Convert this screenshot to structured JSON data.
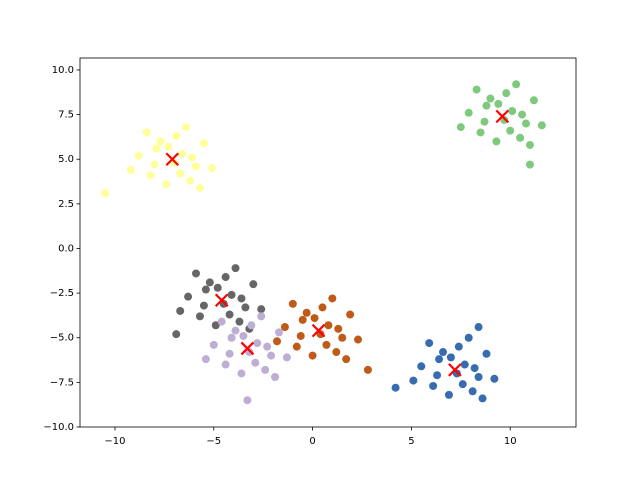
{
  "chart_data": {
    "type": "scatter",
    "xlim": [
      -11.77,
      13.33
    ],
    "ylim": [
      -10,
      10.67
    ],
    "xticks": [
      {
        "value": -10,
        "label": "−10"
      },
      {
        "value": -5,
        "label": "−5"
      },
      0,
      5,
      10
    ],
    "yticks": [
      {
        "value": -10,
        "label": "−10.0"
      },
      {
        "value": -7.5,
        "label": "−7.5"
      },
      {
        "value": -5,
        "label": "−5.0"
      },
      {
        "value": -2.5,
        "label": "−2.5"
      },
      {
        "value": 0,
        "label": "0.0"
      },
      {
        "value": 2.5,
        "label": "2.5"
      },
      {
        "value": 5,
        "label": "5.0"
      },
      {
        "value": 7.5,
        "label": "7.5"
      },
      {
        "value": 10,
        "label": "10.0"
      }
    ],
    "series": [
      {
        "color": "#ffff99",
        "x": [
          -6.6,
          -7.9,
          -5.9,
          -8.2,
          -6.9,
          -7.4,
          -5.5,
          -8.8,
          -6.2,
          -7.7,
          -7.0,
          -5.1,
          -9.2,
          -6.4,
          -8.4,
          -5.7,
          -7.3,
          -6.7,
          -8.0,
          -6.1,
          -10.5
        ],
        "y": [
          5.3,
          5.6,
          4.6,
          4.1,
          6.3,
          3.6,
          5.9,
          5.2,
          3.8,
          6.0,
          4.8,
          4.5,
          4.4,
          6.8,
          6.5,
          3.4,
          5.7,
          4.2,
          4.7,
          5.1,
          3.1
        ]
      },
      {
        "color": "#7fc97f",
        "x": [
          10.1,
          8.8,
          10.8,
          8.5,
          9.8,
          9.3,
          11.2,
          7.9,
          10.5,
          9.0,
          9.7,
          11.6,
          7.5,
          10.3,
          8.3,
          11.0,
          9.4,
          10.0,
          8.7,
          10.6,
          11.0
        ],
        "y": [
          7.7,
          8.0,
          7.0,
          6.5,
          8.7,
          6.0,
          8.3,
          7.6,
          6.2,
          8.4,
          7.2,
          6.9,
          6.8,
          9.2,
          8.9,
          5.8,
          8.1,
          6.6,
          7.1,
          7.5,
          4.7
        ]
      },
      {
        "color": "#666666",
        "x": [
          -4.1,
          -5.4,
          -3.4,
          -5.7,
          -4.4,
          -4.9,
          -3.0,
          -6.3,
          -3.7,
          -5.2,
          -4.5,
          -2.6,
          -6.7,
          -3.9,
          -5.9,
          -3.2,
          -4.8,
          -4.2,
          -5.5,
          -3.6,
          -6.9
        ],
        "y": [
          -2.6,
          -2.3,
          -3.3,
          -3.8,
          -1.6,
          -4.3,
          -2.0,
          -2.7,
          -4.1,
          -1.9,
          -3.1,
          -3.4,
          -3.5,
          -1.1,
          -1.4,
          -4.5,
          -2.2,
          -3.7,
          -3.2,
          -2.8,
          -4.8
        ]
      },
      {
        "color": "#bf5b17",
        "x": [
          0.8,
          -0.5,
          1.5,
          -0.8,
          0.5,
          0.0,
          1.9,
          -1.4,
          1.2,
          -0.3,
          0.4,
          2.3,
          -1.8,
          1.0,
          -1.0,
          1.7,
          0.1,
          0.7,
          -0.6,
          1.3,
          2.8
        ],
        "y": [
          -4.3,
          -4.0,
          -5.0,
          -5.5,
          -3.3,
          -6.0,
          -3.7,
          -4.4,
          -5.8,
          -3.6,
          -4.8,
          -5.1,
          -5.2,
          -2.8,
          -3.1,
          -6.2,
          -3.9,
          -5.4,
          -4.9,
          -4.5,
          -6.8
        ]
      },
      {
        "color": "#beaed4",
        "x": [
          -2.8,
          -4.1,
          -2.1,
          -4.4,
          -3.1,
          -3.6,
          -1.7,
          -5.0,
          -2.4,
          -3.9,
          -3.2,
          -1.3,
          -5.4,
          -2.6,
          -4.6,
          -1.9,
          -3.5,
          -2.9,
          -4.2,
          -2.3,
          -3.3
        ],
        "y": [
          -5.3,
          -5.0,
          -6.0,
          -6.5,
          -4.3,
          -7.0,
          -4.7,
          -5.4,
          -6.8,
          -4.6,
          -5.8,
          -6.1,
          -6.2,
          -3.8,
          -4.1,
          -7.2,
          -4.9,
          -6.4,
          -5.9,
          -5.5,
          -8.5
        ]
      },
      {
        "color": "#386cb0",
        "x": [
          7.7,
          6.4,
          8.4,
          6.1,
          7.4,
          6.9,
          8.8,
          5.5,
          8.1,
          6.6,
          7.3,
          9.2,
          5.1,
          7.9,
          5.9,
          8.6,
          7.0,
          7.6,
          6.3,
          8.2,
          4.2,
          8.4
        ],
        "y": [
          -6.5,
          -6.2,
          -7.2,
          -7.7,
          -5.5,
          -8.2,
          -5.9,
          -6.6,
          -8.0,
          -5.8,
          -7.0,
          -7.3,
          -7.4,
          -5.0,
          -5.3,
          -8.4,
          -6.1,
          -7.6,
          -7.1,
          -6.7,
          -7.8,
          -4.4
        ]
      }
    ],
    "centroids": {
      "color": "#ff0000",
      "x": [
        -7.1,
        9.6,
        -4.6,
        0.3,
        -3.3,
        7.2
      ],
      "y": [
        5.0,
        7.4,
        -2.9,
        -4.6,
        -5.6,
        -6.8
      ]
    }
  }
}
